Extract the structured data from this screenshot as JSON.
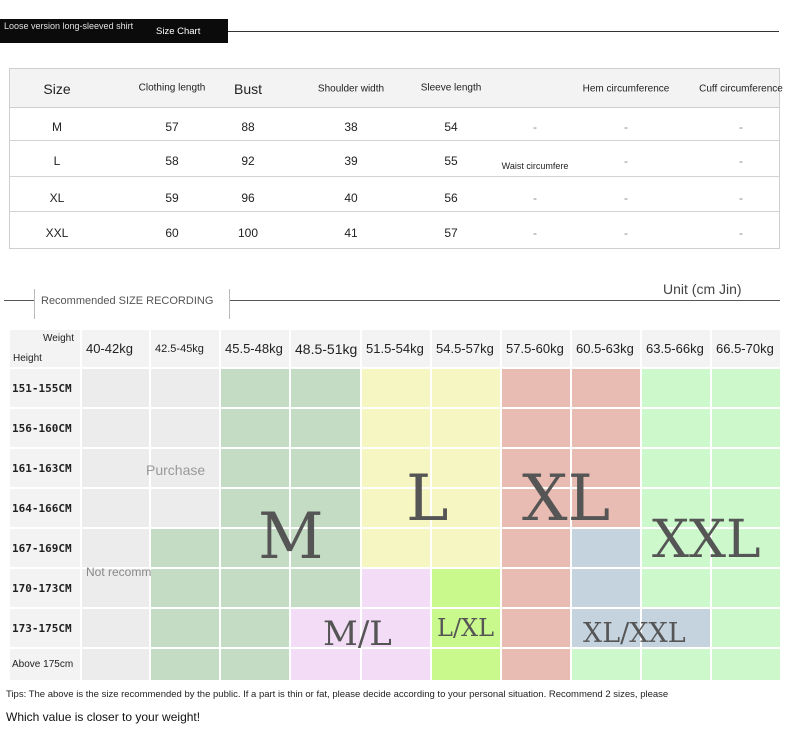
{
  "header": {
    "subtitle": "Loose version long-sleeved shirt",
    "chart_label": "Size Chart"
  },
  "size_table": {
    "columns": [
      "Size",
      "Clothing length",
      "Bust",
      "Shoulder width",
      "Sleeve length",
      "",
      "Hem circumference",
      "Cuff circumference"
    ],
    "rows": [
      [
        "M",
        "57",
        "88",
        "38",
        "54",
        "-",
        "-",
        "-"
      ],
      [
        "L",
        "58",
        "92",
        "39",
        "55",
        "Waist circumfere",
        "-",
        "-"
      ],
      [
        "XL",
        "59",
        "96",
        "40",
        "56",
        "-",
        "-",
        "-"
      ],
      [
        "XXL",
        "60",
        "100",
        "41",
        "57",
        "-",
        "-",
        "-"
      ]
    ]
  },
  "recommend": {
    "label": "Recommended SIZE RECORDING",
    "unit": "Unit (cm Jin)",
    "corner_weight": "Weight",
    "corner_height": "Height",
    "weights": [
      "40-42kg",
      "42.5-45kg",
      "45.5-48kg",
      "48.5-51kg",
      "51.5-54kg",
      "54.5-57kg",
      "57.5-60kg",
      "60.5-63kg",
      "63.5-66kg",
      "66.5-70kg"
    ],
    "heights": [
      "151-155CM",
      "156-160CM",
      "161-163CM",
      "164-166CM",
      "167-169CM",
      "170-173CM",
      "173-175CM",
      "Above 175cm"
    ],
    "purchase_text": "Purchase",
    "not_recommended_text": "Not recomm",
    "size_labels": {
      "m": "M",
      "l": "L",
      "xl": "XL",
      "xxl": "XXL",
      "ml": "M/L",
      "lxl": "L/XL",
      "xlxxl": "XL/XXL"
    },
    "colors": {
      "gray": "#ececec",
      "green": "#c3dcc3",
      "yellow": "#f6f6c3",
      "red": "#e8bcb2",
      "bright_green": "#ccf8cc",
      "lavender": "#f2dcf6",
      "lime": "#c9f88d",
      "blue": "#c5d3df",
      "light_gray": "#f3f3f3"
    }
  },
  "tips": "Tips: The above is the size recommended by the public. If a part is thin or fat, please decide according to your personal situation. Recommend 2 sizes, please",
  "question": "Which value is closer to your weight!"
}
